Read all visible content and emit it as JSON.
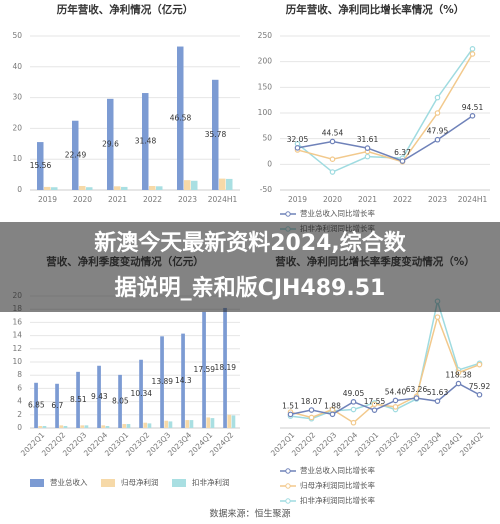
{
  "chart_data": [
    {
      "type": "bar",
      "title": "历年营收、净利情况（亿元）",
      "categories": [
        "2019",
        "2020",
        "2021",
        "2022",
        "2023",
        "2024H1"
      ],
      "ylim": [
        0,
        50
      ],
      "yticks": [
        0,
        10,
        20,
        30,
        40,
        50
      ],
      "grid": true,
      "series": [
        {
          "color": "#7c9bd3",
          "labels": true,
          "values": [
            15.56,
            22.49,
            29.6,
            31.48,
            46.58,
            35.78
          ]
        },
        {
          "color": "#f6d9a8",
          "values": [
            1.0,
            1.3,
            1.2,
            1.3,
            3.2,
            3.7
          ]
        },
        {
          "color": "#a9dfe2",
          "values": [
            0.9,
            0.9,
            1.0,
            1.2,
            3.0,
            3.6
          ]
        }
      ]
    },
    {
      "type": "line",
      "title": "历年营收、净利同比增长率情况（%）",
      "categories": [
        "2019",
        "2020",
        "2021",
        "2022",
        "2023",
        "2024H1"
      ],
      "ylim": [
        -50,
        250
      ],
      "yticks": [
        -50,
        0,
        50,
        100,
        150,
        200,
        250
      ],
      "grid": true,
      "series": [
        {
          "name": "营业总收入同比增长率",
          "color": "#6f82b9",
          "labels": true,
          "values": [
            32.05,
            44.54,
            31.61,
            6.37,
            47.95,
            94.51
          ]
        },
        {
          "color": "#f2c98c",
          "values": [
            28,
            10,
            25,
            5,
            100,
            215
          ]
        },
        {
          "name": "扣非净利润同比增长率",
          "color": "#9fdbe0",
          "values": [
            40,
            -15,
            15,
            12,
            130,
            225
          ]
        }
      ]
    },
    {
      "type": "bar",
      "title": "营收、净利季度变动情况（亿元）",
      "categories": [
        "2022Q1",
        "2022Q2",
        "2022Q3",
        "2022Q4",
        "2023Q1",
        "2023Q2",
        "2023Q3",
        "2023Q4",
        "2024Q1",
        "2024Q2"
      ],
      "ylim": [
        0,
        20
      ],
      "yticks": [
        0,
        2,
        4,
        6,
        8,
        10,
        12,
        14,
        16,
        18,
        20
      ],
      "grid": true,
      "series": [
        {
          "name": "营业总收入",
          "color": "#7c9bd3",
          "labels": true,
          "values": [
            6.85,
            6.7,
            8.51,
            9.43,
            8.05,
            10.34,
            13.89,
            14.3,
            17.59,
            18.19
          ]
        },
        {
          "name": "归母净利润",
          "color": "#f6d9a8",
          "values": [
            0.3,
            0.4,
            0.4,
            0.4,
            0.6,
            0.8,
            1.1,
            1.2,
            1.6,
            2.0
          ]
        },
        {
          "name": "扣非净利润",
          "color": "#a9dfe2",
          "values": [
            0.3,
            0.3,
            0.4,
            0.3,
            0.6,
            0.7,
            1.0,
            1.2,
            1.5,
            1.9
          ]
        }
      ]
    },
    {
      "type": "line",
      "title": "营收、净利同比增长率季度变动情况（%）",
      "categories": [
        "2022Q1",
        "2022Q2",
        "2022Q3",
        "2022Q4",
        "2023Q1",
        "2023Q2",
        "2023Q3",
        "2023Q4",
        "2024Q1",
        "2024Q2"
      ],
      "ylim": [
        -50,
        450
      ],
      "grid": false,
      "series": [
        {
          "name": "营业总收入同比增长率",
          "color": "#6f82b9",
          "labels": true,
          "values": [
            1.51,
            18.07,
            1.88,
            49.05,
            17.55,
            54.4,
            63.26,
            51.63,
            118.38,
            75.92
          ],
          "value_labels": [
            "1.51",
            "18.07",
            "1.88",
            "49.05",
            "17.55",
            "54.40",
            "63.26",
            "51.63",
            "118.38",
            "75.92"
          ]
        },
        {
          "name": "归母净利润同比增长率",
          "color": "#f2c98c",
          "values": [
            10,
            -10,
            20,
            -30,
            40,
            30,
            70,
            370,
            160,
            190
          ]
        },
        {
          "name": "扣非净利润同比增长率",
          "color": "#9fdbe0",
          "values": [
            -5,
            -15,
            15,
            20,
            45,
            20,
            60,
            430,
            170,
            195
          ]
        }
      ]
    }
  ],
  "banner": {
    "lines": [
      "新澳今天最新资料2024,综合数",
      "据说明_亲和版CJH489.51"
    ]
  },
  "source": "数据来源：恒生聚源"
}
